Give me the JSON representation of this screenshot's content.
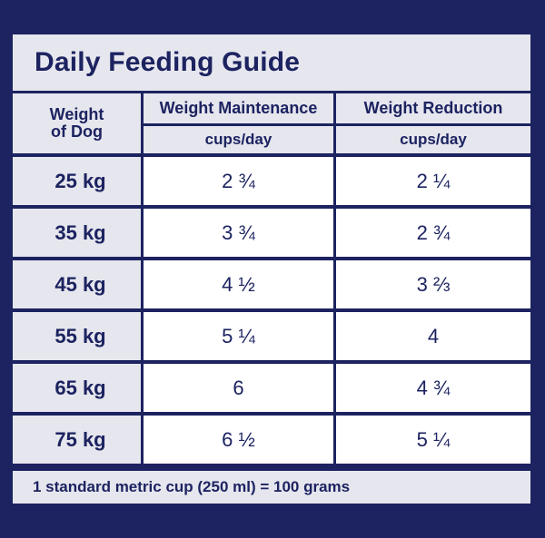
{
  "title": "Daily Feeding Guide",
  "header": {
    "weight_line1": "Weight",
    "weight_line2": "of Dog",
    "maintenance": "Weight Maintenance",
    "reduction": "Weight Reduction",
    "unit": "cups/day"
  },
  "rows": [
    {
      "weight": "25 kg",
      "maintenance": "2 ¾",
      "reduction": "2 ¼"
    },
    {
      "weight": "35 kg",
      "maintenance": "3 ¾",
      "reduction": "2 ¾"
    },
    {
      "weight": "45 kg",
      "maintenance": "4 ½",
      "reduction": "3 ⅔"
    },
    {
      "weight": "55 kg",
      "maintenance": "5 ¼",
      "reduction": "4"
    },
    {
      "weight": "65 kg",
      "maintenance": "6",
      "reduction": "4 ¾"
    },
    {
      "weight": "75 kg",
      "maintenance": "6 ½",
      "reduction": "5 ¼"
    }
  ],
  "footer": "1 standard metric cup (250 ml) = 100 grams",
  "colors": {
    "navy": "#1c2360",
    "light_gray": "#e6e6ee",
    "white": "#ffffff"
  }
}
